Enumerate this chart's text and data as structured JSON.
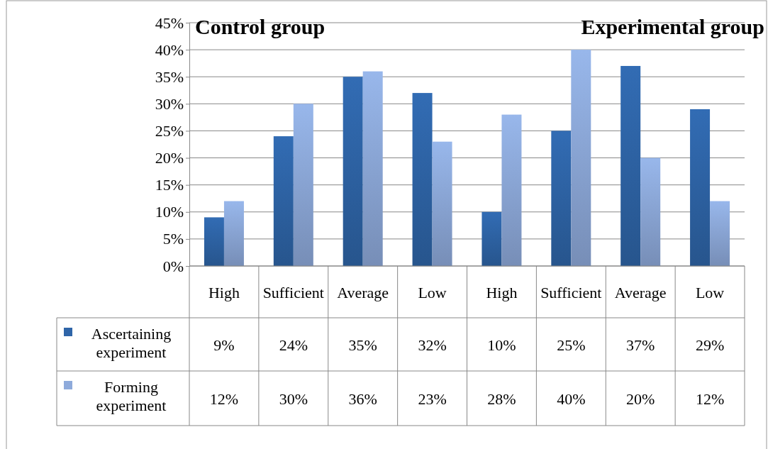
{
  "chart_data": {
    "type": "bar",
    "categories": [
      "High",
      "Sufficient",
      "Average",
      "Low",
      "High",
      "Sufficient",
      "Average",
      "Low"
    ],
    "series": [
      {
        "name": "Ascertaining experiment",
        "color": "#2f65a8",
        "values": [
          9,
          24,
          35,
          32,
          10,
          25,
          37,
          29
        ],
        "value_labels": [
          "9%",
          "24%",
          "35%",
          "32%",
          "10%",
          "25%",
          "37%",
          "29%"
        ]
      },
      {
        "name": "Forming experiment",
        "color": "#8eaadb",
        "values": [
          12,
          30,
          36,
          23,
          28,
          40,
          20,
          12
        ],
        "value_labels": [
          "12%",
          "30%",
          "36%",
          "23%",
          "28%",
          "40%",
          "20%",
          "12%"
        ]
      }
    ],
    "ylim": [
      0,
      45
    ],
    "yticks": [
      {
        "value": 0,
        "label": "0%"
      },
      {
        "value": 5,
        "label": "5%"
      },
      {
        "value": 10,
        "label": "10%"
      },
      {
        "value": 15,
        "label": "15%"
      },
      {
        "value": 20,
        "label": "20%"
      },
      {
        "value": 25,
        "label": "25%"
      },
      {
        "value": 30,
        "label": "30%"
      },
      {
        "value": 35,
        "label": "35%"
      },
      {
        "value": 40,
        "label": "40%"
      },
      {
        "value": 45,
        "label": "45%"
      }
    ],
    "grid": "y",
    "legend": "bottom",
    "annotations": [
      "Control group",
      "Experimental group"
    ]
  }
}
